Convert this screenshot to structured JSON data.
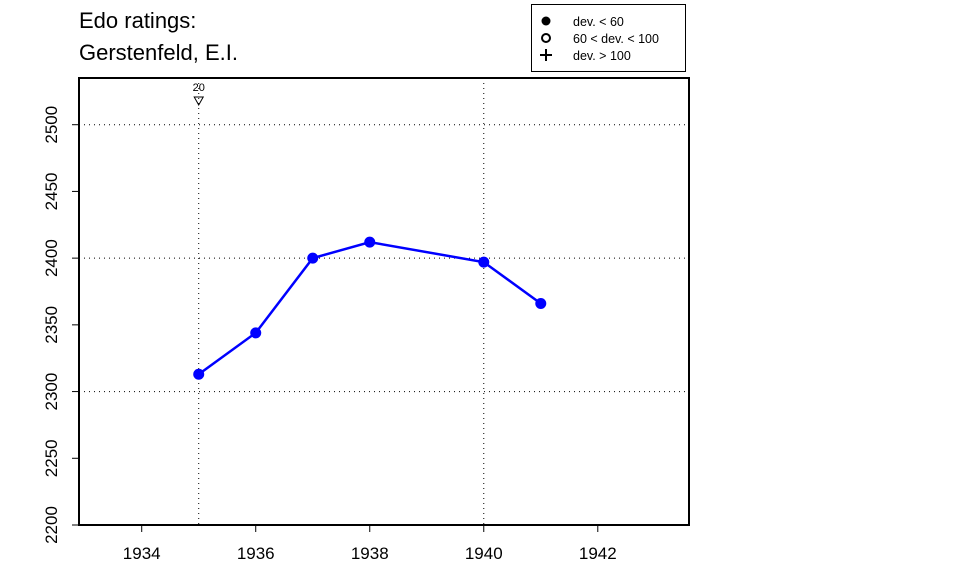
{
  "title_line1": "Edo ratings:",
  "title_line2": "Gerstenfeld, E.I.",
  "legend": [
    {
      "symbol": "filled-circle",
      "label": "dev. < 60"
    },
    {
      "symbol": "open-circle",
      "label": "60 < dev. < 100"
    },
    {
      "symbol": "plus",
      "label": "dev. > 100"
    }
  ],
  "colors": {
    "series": "#0000ff",
    "axis": "#000000",
    "grid": "#000000"
  },
  "chart_data": {
    "type": "line",
    "title": "Edo ratings: Gerstenfeld, E.I.",
    "xlabel": "",
    "ylabel": "",
    "xlim": [
      1932.9,
      1943.6
    ],
    "ylim": [
      2200,
      2535
    ],
    "x_ticks": [
      1934,
      1936,
      1938,
      1940,
      1942
    ],
    "y_ticks": [
      2200,
      2250,
      2300,
      2350,
      2400,
      2450,
      2500
    ],
    "x_grid": [
      1935,
      1940
    ],
    "y_grid": [
      2300,
      2400,
      2500
    ],
    "grid": true,
    "series": [
      {
        "x": [
          1935,
          1936,
          1937,
          1938,
          1940,
          1941
        ],
        "y": [
          2313,
          2344,
          2400,
          2412,
          2397,
          2366
        ],
        "marker": "filled-circle"
      }
    ],
    "annotations": [
      {
        "x": 1935,
        "label": "20",
        "marker": "open-triangle-down"
      }
    ]
  }
}
